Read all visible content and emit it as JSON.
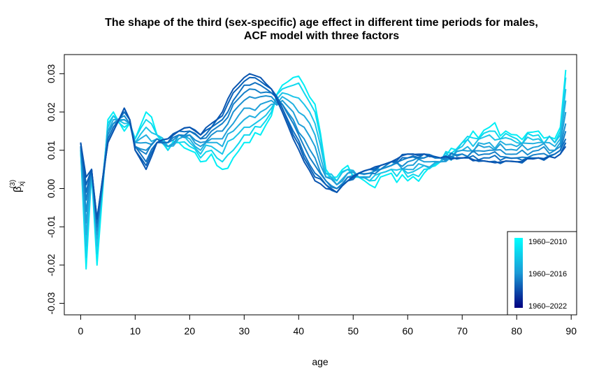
{
  "chart_data": {
    "type": "line",
    "title": "The shape of the third (sex-specific) age effect in different time periods for males,",
    "subtitle": "ACF model with three factors",
    "xlabel": "age",
    "ylabel_main": "β",
    "ylabel_sub": "xj",
    "ylabel_sup": "(3)",
    "xlim": [
      -3,
      91
    ],
    "ylim": [
      -0.033,
      0.035
    ],
    "x_ticks": [
      "0",
      "10",
      "20",
      "30",
      "40",
      "50",
      "60",
      "70",
      "80",
      "90"
    ],
    "y_ticks": [
      "-0.03",
      "-0.02",
      "-0.01",
      "0.00",
      "0.01",
      "0.02",
      "0.03"
    ],
    "legend": {
      "position": "bottom-right",
      "labels": [
        "1960–2010",
        "1960–2016",
        "1960–2022"
      ],
      "gradient_top": "#00ffff",
      "gradient_mid": "#1a9ad6",
      "gradient_bottom": "#000080"
    },
    "series_colors": [
      "#00eef5",
      "#10d8ee",
      "#1cc4e8",
      "#22b0e0",
      "#20a0d8",
      "#1a90d0",
      "#1580c8",
      "#1070c0",
      "#0a62b8",
      "#0a55b0"
    ],
    "anchor_ages": [
      0,
      1,
      2,
      3,
      5,
      6,
      8,
      9,
      10,
      12,
      14,
      16,
      18,
      20,
      22,
      24,
      25,
      26,
      28,
      30,
      31,
      33,
      35,
      37,
      39,
      41,
      43,
      45,
      47,
      49,
      51,
      53,
      55,
      57,
      60,
      63,
      66,
      70,
      75,
      80,
      84,
      87,
      88,
      89
    ],
    "first_curve": [
      0.01,
      -0.021,
      0.004,
      -0.02,
      0.018,
      0.02,
      0.015,
      0.017,
      0.013,
      0.02,
      0.014,
      0.01,
      0.012,
      0.01,
      0.007,
      0.009,
      0.006,
      0.005,
      0.008,
      0.012,
      0.012,
      0.014,
      0.019,
      0.027,
      0.029,
      0.027,
      0.022,
      0.005,
      0.003,
      0.006,
      0.003,
      0.001,
      0.003,
      0.004,
      0.002,
      0.004,
      0.007,
      0.012,
      0.016,
      0.014,
      0.015,
      0.013,
      0.016,
      0.031
    ],
    "last_curve": [
      0.012,
      0.003,
      0.005,
      -0.008,
      0.012,
      0.015,
      0.021,
      0.018,
      0.01,
      0.005,
      0.012,
      0.013,
      0.015,
      0.016,
      0.014,
      0.017,
      0.018,
      0.02,
      0.026,
      0.029,
      0.03,
      0.029,
      0.026,
      0.02,
      0.013,
      0.007,
      0.002,
      0.0,
      -0.001,
      0.002,
      0.004,
      0.005,
      0.006,
      0.007,
      0.009,
      0.009,
      0.008,
      0.008,
      0.007,
      0.007,
      0.008,
      0.008,
      0.009,
      0.011
    ],
    "series": [
      {
        "values": [
          0.01,
          -0.021,
          0.004,
          -0.02,
          0.018,
          0.02,
          0.015,
          0.017,
          0.013,
          0.02,
          0.014,
          0.01,
          0.012,
          0.01,
          0.007,
          0.009,
          0.006,
          0.005,
          0.008,
          0.012,
          0.012,
          0.014,
          0.019,
          0.027,
          0.029,
          0.027,
          0.022,
          0.005,
          0.003,
          0.006,
          0.003,
          0.001,
          0.003,
          0.004,
          0.002,
          0.004,
          0.007,
          0.012,
          0.016,
          0.014,
          0.015,
          0.013,
          0.016,
          0.031
        ]
      },
      {
        "values": [
          0.01,
          -0.018,
          0.004,
          -0.017,
          0.017,
          0.019,
          0.016,
          0.017,
          0.013,
          0.018,
          0.014,
          0.01,
          0.012,
          0.011,
          0.008,
          0.01,
          0.008,
          0.007,
          0.01,
          0.014,
          0.014,
          0.016,
          0.02,
          0.026,
          0.027,
          0.025,
          0.02,
          0.004,
          0.002,
          0.005,
          0.003,
          0.002,
          0.004,
          0.005,
          0.003,
          0.005,
          0.007,
          0.012,
          0.015,
          0.013,
          0.014,
          0.012,
          0.015,
          0.029
        ]
      },
      {
        "values": [
          0.01,
          -0.015,
          0.004,
          -0.015,
          0.016,
          0.019,
          0.017,
          0.017,
          0.012,
          0.016,
          0.014,
          0.011,
          0.013,
          0.012,
          0.009,
          0.011,
          0.01,
          0.009,
          0.013,
          0.016,
          0.016,
          0.018,
          0.021,
          0.025,
          0.024,
          0.022,
          0.017,
          0.004,
          0.002,
          0.005,
          0.003,
          0.002,
          0.004,
          0.005,
          0.004,
          0.006,
          0.007,
          0.011,
          0.014,
          0.012,
          0.013,
          0.012,
          0.014,
          0.026
        ]
      },
      {
        "values": [
          0.011,
          -0.012,
          0.004,
          -0.013,
          0.015,
          0.018,
          0.018,
          0.017,
          0.012,
          0.014,
          0.013,
          0.011,
          0.013,
          0.013,
          0.01,
          0.012,
          0.012,
          0.011,
          0.015,
          0.018,
          0.019,
          0.02,
          0.022,
          0.024,
          0.022,
          0.019,
          0.014,
          0.003,
          0.001,
          0.004,
          0.003,
          0.003,
          0.005,
          0.006,
          0.005,
          0.006,
          0.007,
          0.01,
          0.012,
          0.011,
          0.012,
          0.011,
          0.013,
          0.023
        ]
      },
      {
        "values": [
          0.011,
          -0.009,
          0.005,
          -0.012,
          0.015,
          0.017,
          0.018,
          0.017,
          0.012,
          0.012,
          0.013,
          0.011,
          0.014,
          0.014,
          0.011,
          0.013,
          0.013,
          0.013,
          0.017,
          0.021,
          0.021,
          0.022,
          0.023,
          0.023,
          0.02,
          0.016,
          0.011,
          0.003,
          0.001,
          0.004,
          0.003,
          0.003,
          0.005,
          0.006,
          0.006,
          0.007,
          0.007,
          0.01,
          0.011,
          0.01,
          0.011,
          0.01,
          0.012,
          0.02
        ]
      },
      {
        "values": [
          0.011,
          -0.006,
          0.005,
          -0.011,
          0.014,
          0.017,
          0.019,
          0.017,
          0.011,
          0.01,
          0.013,
          0.012,
          0.014,
          0.014,
          0.012,
          0.014,
          0.015,
          0.015,
          0.02,
          0.023,
          0.024,
          0.024,
          0.024,
          0.022,
          0.018,
          0.013,
          0.008,
          0.002,
          0.0,
          0.003,
          0.004,
          0.004,
          0.005,
          0.006,
          0.007,
          0.008,
          0.008,
          0.009,
          0.01,
          0.009,
          0.01,
          0.01,
          0.011,
          0.017
        ]
      },
      {
        "values": [
          0.011,
          -0.003,
          0.005,
          -0.01,
          0.013,
          0.016,
          0.02,
          0.018,
          0.011,
          0.009,
          0.013,
          0.012,
          0.014,
          0.015,
          0.013,
          0.015,
          0.016,
          0.017,
          0.022,
          0.025,
          0.026,
          0.025,
          0.025,
          0.022,
          0.017,
          0.011,
          0.006,
          0.002,
          0.0,
          0.003,
          0.004,
          0.004,
          0.005,
          0.007,
          0.008,
          0.008,
          0.008,
          0.009,
          0.009,
          0.008,
          0.009,
          0.009,
          0.01,
          0.015
        ]
      },
      {
        "values": [
          0.012,
          -0.001,
          0.005,
          -0.009,
          0.013,
          0.016,
          0.02,
          0.018,
          0.011,
          0.007,
          0.012,
          0.012,
          0.015,
          0.015,
          0.013,
          0.016,
          0.017,
          0.018,
          0.023,
          0.027,
          0.027,
          0.027,
          0.025,
          0.021,
          0.015,
          0.009,
          0.004,
          0.001,
          -0.001,
          0.002,
          0.004,
          0.005,
          0.006,
          0.007,
          0.008,
          0.009,
          0.008,
          0.008,
          0.008,
          0.008,
          0.008,
          0.009,
          0.01,
          0.013
        ]
      },
      {
        "values": [
          0.012,
          0.001,
          0.005,
          -0.008,
          0.012,
          0.015,
          0.021,
          0.018,
          0.01,
          0.006,
          0.012,
          0.013,
          0.015,
          0.016,
          0.014,
          0.016,
          0.018,
          0.019,
          0.025,
          0.028,
          0.029,
          0.028,
          0.026,
          0.021,
          0.014,
          0.008,
          0.003,
          0.001,
          -0.001,
          0.002,
          0.004,
          0.005,
          0.006,
          0.007,
          0.009,
          0.009,
          0.008,
          0.008,
          0.007,
          0.007,
          0.008,
          0.008,
          0.009,
          0.012
        ]
      },
      {
        "values": [
          0.012,
          0.003,
          0.005,
          -0.008,
          0.012,
          0.015,
          0.021,
          0.018,
          0.01,
          0.005,
          0.012,
          0.013,
          0.015,
          0.016,
          0.014,
          0.017,
          0.018,
          0.02,
          0.026,
          0.029,
          0.03,
          0.029,
          0.026,
          0.02,
          0.013,
          0.007,
          0.002,
          0.0,
          -0.001,
          0.002,
          0.004,
          0.005,
          0.006,
          0.007,
          0.009,
          0.009,
          0.008,
          0.008,
          0.007,
          0.007,
          0.008,
          0.008,
          0.009,
          0.011
        ]
      }
    ],
    "grid": false
  }
}
